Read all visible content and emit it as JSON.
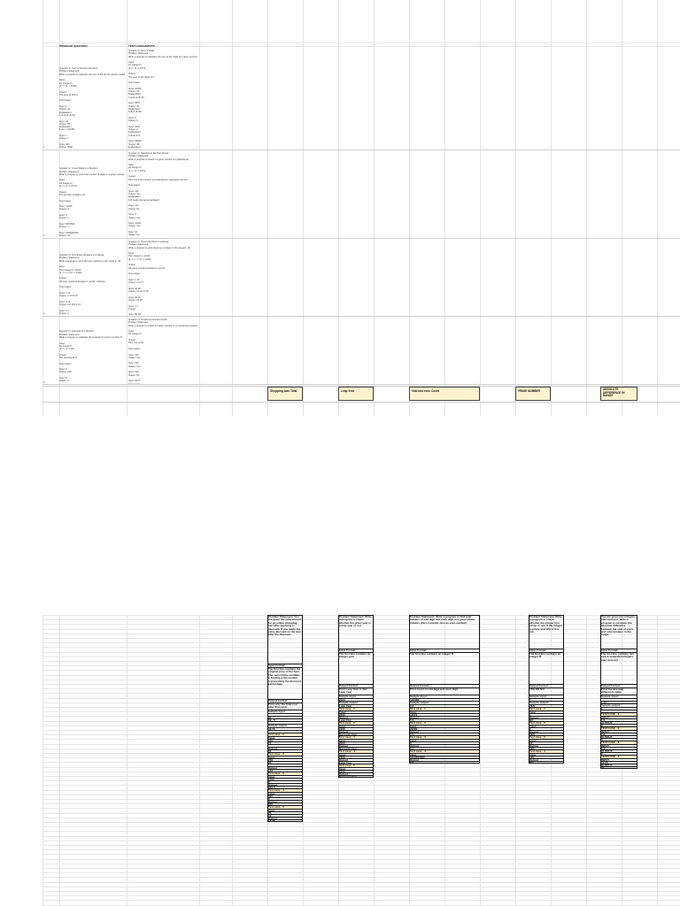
{
  "page1": {
    "col_headers": [
      "PROBLEM QUESTION",
      "TESTCASES/INPUTS"
    ],
    "rows": [
      {
        "question": "Question 1: Sum of Positive Numbers\nProblem Statement:\nWrite a program to calculate the sum of the first N natural numbers.\n\nInput:\nAn integer N\n(1 <= N <= 1000)\n\nOutput:\nThe sum of first N\n\nTest Cases:\n\nInput: 5\nOutput: 15\nExplanation:\n1+2+3+4+5=15\n\nInput: 10\nOutput: 55\nExplanation:\n1+2+...+10=55\n\nInput: 1\nOutput: 1\n\nInput: 100\nOutput: 5050\n\nInput: 1000\nOutput: 500500",
        "testcases": "Question 1: Sum of Digits\nProblem Statement:\nWrite a program to calculate the sum of the digits of a given number.\n\nInput:\nAn integer N\n(0 <= N <= 10^9)\n\nOutput:\nThe sum of the digits of N\n\nTest Cases:\n\nInput: 12345\nOutput: 15\nExplanation:\n1+2+3+4+5=15\n\nInput: 9876\nOutput: 30\nExplanation:\n9+8+7+6=30\n\nInput: 0\nOutput: 0\n\nInput: 1001\nOutput: 2\nExplanation:\n1+0+0+1=2\n\nInput: 99999\nOutput: 45\nExplanation:\n9+9+9+9+9=45\n\nInput: 5\nOutput: 5"
      },
      {
        "question": "Question 2: Count Digits in a Number\nProblem Statement:\nWrite a program to count the number of digits in a given number.\n\nInput:\nAn integer N\n(0 <= N <= 10^9)\n\nOutput:\nThe number of digits in N\n\nTest Cases:\n\nInput: 12345\nOutput: 5\n\nInput: 0\nOutput: 1\n\nInput: 9876543\nOutput: 7\n\nInput: 1000000000\nOutput: 10\n\nInput: 7\nOutput: 1",
        "testcases": "Question 2: Palindrome Number Check\nProblem Statement:\nWrite a program to check if a given number is a palindrome.\n\nInput:\nAn integer N\n(0 <= N <= 10^9)\n\nOutput:\nPrint Yes if the number is a palindrome, otherwise print No.\n\nTest Cases:\n\nInput: 121\nOutput: Yes\nExplanation:\n121 reads the same backward.\n\nInput: 123\nOutput: No\n\nInput: 0\nOutput: Yes\n\nInput: 12321\nOutput: Yes\n\nInput: 10\nOutput: No\n\nInput: 1001\nOutput: Yes"
      },
      {
        "question": "Question 3: Print Even Numbers in a Range\nProblem Statement:\nWrite a program to print all even numbers in the range [L, R].\n\nInput:\nTwo integers L and R\n(1 <= L <= R <= 1000)\n\nOutput:\nAll even numbers between L and R, inclusive.\n\nTest Cases:\n\nInput: 1 10\nOutput: 2 4 6 8 10\n\nInput: 5 15\nOutput: 6 8 10 12 14\n\nInput: 2 2\nOutput: 2\n\nInput: 11 11\nOutput:\n\nInput: 20 30\nOutput: 20 22 24 26 28 30",
        "testcases": "Question 3: Prime Numbers in a Range\nProblem Statement:\nWrite a program to print all prime numbers in the range [L, R].\n\nInput:\nTwo integers L and R\n(1 <= L <= R <= 1000)\n\nOutput:\nAll prime numbers between L and R.\n\nTest Cases:\n\nInput: 1 10\nOutput: 2 3 5 7\n\nInput: 10 20\nOutput: 11 13 17 19\n\nInput: 20 30\nOutput: 23 29\n\nInput: 1 1\nOutput:\n\nInput: 50 60\nOutput: 53 59"
      },
      {
        "question": "Question 4: Factorial of a Number\nProblem Statement:\nWrite a program to calculate the factorial of a given number N.\n\nInput:\nAn integer N\n(0 <= N <= 20)\n\nOutput:\nThe factorial of N\n\nTest Cases:\n\nInput: 5\nOutput: 120\n\nInput: 0\nOutput: 1\n\nInput: 1\nOutput: 1\n\nInput: 10\nOutput: 3628800\n\nInput: 20\nOutput: 2432902008176640000",
        "testcases": "Question 4: Armstrong Number Check\nProblem Statement:\nWrite a program to check if a given number is an Armstrong number.\n\nInput:\nAn integer N\n\nOutput:\nPrint Yes or No\n\nTest Cases:\n\nInput: 153\nOutput: Yes\n\nInput: 370\nOutput: Yes\n\nInput: 123\nOutput: No\n\nInput: 9474\nOutput: Yes\n\nInput: 10\nOutput: No"
      }
    ],
    "row_markers": [
      "1",
      "2",
      "3",
      "4"
    ],
    "yellow_headers": [
      "Shopping loan Total",
      "Leap Year",
      "Odd and even Count",
      "PRIME NUMBER",
      "ABSOLUTE DIFFERENCE IN RANGE"
    ]
  },
  "page2": {
    "columns": [
      {
        "cells": [
          {
            "t": "Problem Statement:\nYou are given the total amount for an online shopping cart after applying a discount. If you apply the extra discount on the item after the discount...",
            "h": 55
          },
          {
            "t": "Input Format:",
            "h": 4
          },
          {
            "t": "The first line contains the original price of the item. The second line contains a floating point number representing the discount percentage.",
            "h": 36
          },
          {
            "t": "Output Format:",
            "h": 4
          },
          {
            "t": "Print only the final cost after discounts",
            "h": 8
          },
          {
            "t": "Sample input",
            "h": 4
          },
          {
            "t": "",
            "h": 3
          },
          {
            "t": "50",
            "h": 3
          },
          {
            "t": "10 - 5",
            "h": 3
          },
          {
            "t": "",
            "h": 3
          },
          {
            "t": "Sample output",
            "h": 4
          },
          {
            "t": "42.75",
            "h": 3
          },
          {
            "t": "",
            "h": 3
          },
          {
            "t": "Test case - 1",
            "h": 4,
            "y": true
          },
          {
            "t": "Input",
            "h": 3
          },
          {
            "t": "100",
            "h": 3
          },
          {
            "t": "10",
            "h": 3
          },
          {
            "t": "",
            "h": 3
          },
          {
            "t": "Output",
            "h": 3
          },
          {
            "t": "81",
            "h": 3
          },
          {
            "t": "Test case - 2",
            "h": 4,
            "y": true
          },
          {
            "t": "Input",
            "h": 3
          },
          {
            "t": "250",
            "h": 3
          },
          {
            "t": "20",
            "h": 3
          },
          {
            "t": "",
            "h": 3
          },
          {
            "t": "Output",
            "h": 3
          },
          {
            "t": "160",
            "h": 3
          },
          {
            "t": "Test case - 3",
            "h": 4,
            "y": true
          },
          {
            "t": "Input",
            "h": 3
          },
          {
            "t": "1000",
            "h": 3
          },
          {
            "t": "5",
            "h": 3
          },
          {
            "t": "Output",
            "h": 3
          },
          {
            "t": "902.5",
            "h": 3
          },
          {
            "t": "Test case - 4",
            "h": 4,
            "y": true
          },
          {
            "t": "Input",
            "h": 3
          },
          {
            "t": "500",
            "h": 3
          },
          {
            "t": "0",
            "h": 3
          },
          {
            "t": "Output",
            "h": 3
          },
          {
            "t": "500",
            "h": 3
          },
          {
            "t": "Test case - 5",
            "h": 4,
            "y": true
          },
          {
            "t": "Input",
            "h": 3
          },
          {
            "t": "75",
            "h": 3
          },
          {
            "t": "50",
            "h": 3
          },
          {
            "t": "Output",
            "h": 3
          },
          {
            "t": "18.75",
            "h": 3
          }
        ]
      },
      {
        "cells": [
          {
            "t": "Problem Statement:\nWrite a program to check whether the given year is a leap year or not",
            "h": 38
          },
          {
            "t": "Input Format:",
            "h": 4
          },
          {
            "t": "The first line contains an integer year",
            "h": 36
          },
          {
            "t": "Output Format:",
            "h": 4
          },
          {
            "t": "Print Leap Year or Not Leap Year",
            "h": 8
          },
          {
            "t": "Sample input",
            "h": 4
          },
          {
            "t": "2024",
            "h": 3
          },
          {
            "t": "Sample output :",
            "h": 4
          },
          {
            "t": "Leap Year",
            "h": 3
          },
          {
            "t": "Test case - 1",
            "h": 4,
            "y": true
          },
          {
            "t": "Input",
            "h": 3
          },
          {
            "t": "2000",
            "h": 3
          },
          {
            "t": "Output",
            "h": 3
          },
          {
            "t": "Leap Year",
            "h": 3
          },
          {
            "t": "Test case - 2",
            "h": 4,
            "y": true
          },
          {
            "t": "Input",
            "h": 3
          },
          {
            "t": "1900",
            "h": 3
          },
          {
            "t": "Output",
            "h": 3
          },
          {
            "t": "Not Leap Year",
            "h": 3
          },
          {
            "t": "Test case - 3",
            "h": 4,
            "y": true
          },
          {
            "t": "Input",
            "h": 3
          },
          {
            "t": "2023",
            "h": 3
          },
          {
            "t": "Output",
            "h": 3
          },
          {
            "t": "Not Leap Year",
            "h": 3
          },
          {
            "t": "Test case - 4",
            "h": 4,
            "y": true
          },
          {
            "t": "Input",
            "h": 3
          },
          {
            "t": "2400",
            "h": 3
          },
          {
            "t": "Output",
            "h": 3
          },
          {
            "t": "Leap Year",
            "h": 3
          },
          {
            "t": "Test case - 5",
            "h": 4,
            "y": true
          },
          {
            "t": "Input",
            "h": 3
          },
          {
            "t": "2100",
            "h": 3
          },
          {
            "t": "Output",
            "h": 3
          },
          {
            "t": "Not Leap Year",
            "h": 3
          }
        ]
      },
      {
        "cells": [
          {
            "t": "Problem Statement:\nWrite a program to find total number of odd digit and even digit in a given whole number (Zero consider zero as even number)",
            "h": 38
          },
          {
            "t": "Input Format:",
            "h": 4
          },
          {
            "t": "The first line contains an integer N",
            "h": 36
          },
          {
            "t": "Output Format:",
            "h": 4
          },
          {
            "t": "Print count of odd digit and even digit",
            "h": 8
          },
          {
            "t": "Sample input :",
            "h": 4
          },
          {
            "t": "123456",
            "h": 3
          },
          {
            "t": "Sample output :",
            "h": 4
          },
          {
            "t": "3 3",
            "h": 3
          },
          {
            "t": "Test case - 1",
            "h": 4,
            "y": true
          },
          {
            "t": "Input",
            "h": 3
          },
          {
            "t": "13579",
            "h": 3
          },
          {
            "t": "Output",
            "h": 3
          },
          {
            "t": "5 0",
            "h": 3
          },
          {
            "t": "Test case - 2",
            "h": 4,
            "y": true
          },
          {
            "t": "Input",
            "h": 3
          },
          {
            "t": "24680",
            "h": 3
          },
          {
            "t": "Output",
            "h": 3
          },
          {
            "t": "0 5",
            "h": 3
          },
          {
            "t": "Test case - 3",
            "h": 4,
            "y": true
          },
          {
            "t": "Input",
            "h": 3
          },
          {
            "t": "0",
            "h": 3
          },
          {
            "t": "Output",
            "h": 3
          },
          {
            "t": "0 1",
            "h": 3
          },
          {
            "t": "Test case - 4",
            "h": 4,
            "y": true
          },
          {
            "t": "Input",
            "h": 3
          },
          {
            "t": "1234567890",
            "h": 3
          },
          {
            "t": "Output",
            "h": 3
          },
          {
            "t": "5 5",
            "h": 3
          }
        ]
      },
      {
        "cells": [
          {
            "t": "Problem Statement:\nWrite a program to check whether the integer N is prime or not. If the integer is prime and 'NO' if it is not",
            "h": 38
          },
          {
            "t": "Input Format:",
            "h": 4
          },
          {
            "t": "The first line contains an integer N",
            "h": 36
          },
          {
            "t": "Output Format:",
            "h": 4
          },
          {
            "t": "YES OR NO",
            "h": 8
          },
          {
            "t": "Sample input:",
            "h": 4
          },
          {
            "t": "7",
            "h": 3
          },
          {
            "t": "Sample output:",
            "h": 4
          },
          {
            "t": "YES",
            "h": 3
          },
          {
            "t": "Test case - 1",
            "h": 4,
            "y": true
          },
          {
            "t": "Input",
            "h": 3
          },
          {
            "t": "1",
            "h": 3
          },
          {
            "t": "Output",
            "h": 3
          },
          {
            "t": "NO",
            "h": 3
          },
          {
            "t": "Test case - 2",
            "h": 4,
            "y": true
          },
          {
            "t": "Input",
            "h": 3
          },
          {
            "t": "2",
            "h": 3
          },
          {
            "t": "Output",
            "h": 3
          },
          {
            "t": "YES",
            "h": 3
          },
          {
            "t": "Test case - 3",
            "h": 4,
            "y": true
          },
          {
            "t": "Input",
            "h": 3
          },
          {
            "t": "97",
            "h": 3
          },
          {
            "t": "Output",
            "h": 3
          },
          {
            "t": "YES",
            "h": 3
          },
          {
            "t": "Test case - 4",
            "h": 4,
            "y": true
          },
          {
            "t": "Input",
            "h": 3
          },
          {
            "t": "100",
            "h": 3
          },
          {
            "t": "Output",
            "h": 3
          },
          {
            "t": "NO",
            "h": 3
          }
        ]
      },
      {
        "cells": [
          {
            "t": "You are given two integers start and end. Write a program to compute the absolute difference between the sum of even and odd numbers in the range...",
            "h": 38
          },
          {
            "t": "Input Format:",
            "h": 4
          },
          {
            "t": "The first line contains two space-separated integers start and end",
            "h": 36
          },
          {
            "t": "Output Format:",
            "h": 4
          },
          {
            "t": "Print the absolute difference value",
            "h": 8
          },
          {
            "t": "Sample input:",
            "h": 4
          },
          {
            "t": "",
            "h": 3
          },
          {
            "t": "1 10",
            "h": 3
          },
          {
            "t": "Sample output:",
            "h": 4
          },
          {
            "t": "5",
            "h": 3
          },
          {
            "t": "",
            "h": 3
          },
          {
            "t": "TESTCASE - 1",
            "h": 4,
            "y": true
          },
          {
            "t": "INPUT",
            "h": 3
          },
          {
            "t": "1 5",
            "h": 3
          },
          {
            "t": "OUTPUT",
            "h": 3
          },
          {
            "t": "3",
            "h": 3
          },
          {
            "t": "TESTCASE - 2",
            "h": 4,
            "y": true
          },
          {
            "t": "INPUT",
            "h": 3
          },
          {
            "t": "2 8",
            "h": 3
          },
          {
            "t": "OUTPUT",
            "h": 3
          },
          {
            "t": "5",
            "h": 3
          },
          {
            "t": "TESTCASE - 3",
            "h": 4,
            "y": true
          },
          {
            "t": "INPUT",
            "h": 3
          },
          {
            "t": "0 0",
            "h": 3
          },
          {
            "t": "OUTPUT",
            "h": 3
          },
          {
            "t": "0",
            "h": 3
          },
          {
            "t": "TESTCASE - 4",
            "h": 4,
            "y": true
          },
          {
            "t": "INPUT",
            "h": 3
          },
          {
            "t": "10 20",
            "h": 3
          },
          {
            "t": "OUTPUT",
            "h": 3
          },
          {
            "t": "15",
            "h": 3
          }
        ]
      }
    ]
  }
}
